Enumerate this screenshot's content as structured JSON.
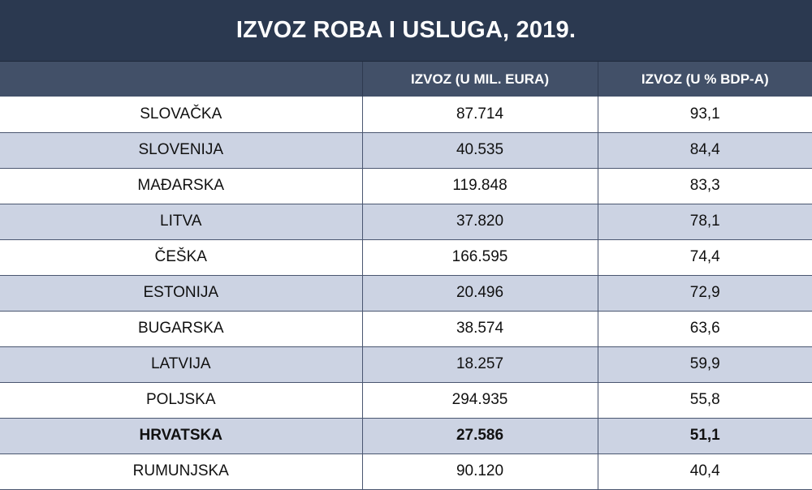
{
  "chart_data": {
    "type": "table",
    "title": "IZVOZ ROBA I USLUGA, 2019.",
    "columns": [
      "",
      "IZVOZ (U MIL. EURA)",
      "IZVOZ (U % BDP-A)"
    ],
    "rows": [
      {
        "country": "SLOVAČKA",
        "export_meur": "87.714",
        "export_pct_gdp": "93,1",
        "highlight": false
      },
      {
        "country": "SLOVENIJA",
        "export_meur": "40.535",
        "export_pct_gdp": "84,4",
        "highlight": false
      },
      {
        "country": "MAĐARSKA",
        "export_meur": "119.848",
        "export_pct_gdp": "83,3",
        "highlight": false
      },
      {
        "country": "LITVA",
        "export_meur": "37.820",
        "export_pct_gdp": "78,1",
        "highlight": false
      },
      {
        "country": "ČEŠKA",
        "export_meur": "166.595",
        "export_pct_gdp": "74,4",
        "highlight": false
      },
      {
        "country": "ESTONIJA",
        "export_meur": "20.496",
        "export_pct_gdp": "72,9",
        "highlight": false
      },
      {
        "country": "BUGARSKA",
        "export_meur": "38.574",
        "export_pct_gdp": "63,6",
        "highlight": false
      },
      {
        "country": "LATVIJA",
        "export_meur": "18.257",
        "export_pct_gdp": "59,9",
        "highlight": false
      },
      {
        "country": "POLJSKA",
        "export_meur": "294.935",
        "export_pct_gdp": "55,8",
        "highlight": false
      },
      {
        "country": "HRVATSKA",
        "export_meur": "27.586",
        "export_pct_gdp": "51,1",
        "highlight": true
      },
      {
        "country": "RUMUNJSKA",
        "export_meur": "90.120",
        "export_pct_gdp": "40,4",
        "highlight": false
      }
    ]
  },
  "colors": {
    "title_background": "#2b3950",
    "header_background": "#425068",
    "stripe_background": "#ccd3e3",
    "text_light": "#ffffff",
    "text_dark": "#111111"
  }
}
